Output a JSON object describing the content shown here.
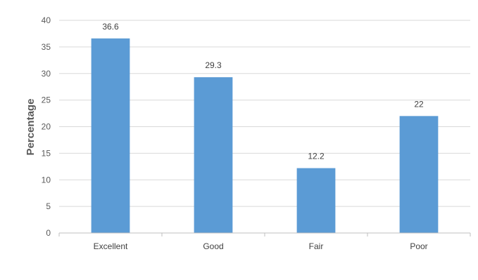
{
  "chart_data": {
    "type": "bar",
    "categories": [
      "Excellent",
      "Good",
      "Fair",
      "Poor"
    ],
    "values": [
      36.6,
      29.3,
      12.2,
      22
    ],
    "data_labels": [
      "36.6",
      "29.3",
      "12.2",
      "22"
    ],
    "title": "",
    "xlabel": "",
    "ylabel": "Percentage",
    "ylim": [
      0,
      40
    ],
    "yticks": [
      0,
      5,
      10,
      15,
      20,
      25,
      30,
      35,
      40
    ],
    "grid": true,
    "legend": "none",
    "colors": {
      "bar": "#5B9BD5",
      "grid": "#D9D9D9",
      "axis": "#BFBFBF",
      "text": "#595959"
    }
  }
}
